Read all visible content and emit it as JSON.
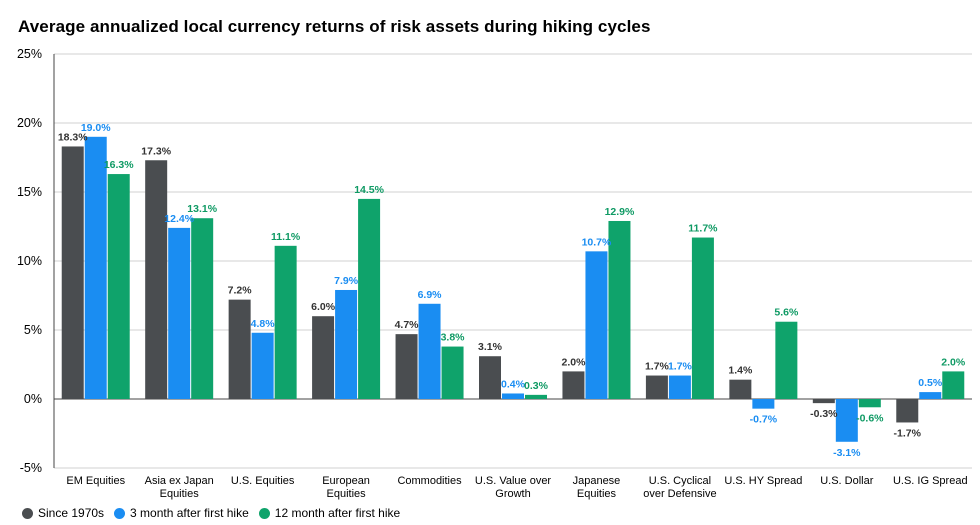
{
  "chart_data": {
    "type": "bar",
    "title": "Average annualized local currency returns of risk assets during hiking cycles",
    "categories": [
      [
        "EM Equities"
      ],
      [
        "Asia ex Japan",
        "Equities"
      ],
      [
        "U.S. Equities"
      ],
      [
        "European",
        "Equities"
      ],
      [
        "Commodities"
      ],
      [
        "U.S. Value over",
        "Growth"
      ],
      [
        "Japanese",
        "Equities"
      ],
      [
        "U.S. Cyclical",
        "over Defensive"
      ],
      [
        "U.S. HY Spread"
      ],
      [
        "U.S. Dollar"
      ],
      [
        "U.S. IG Spread"
      ]
    ],
    "series": [
      {
        "name": "Since 1970s",
        "color": "#4a4d50",
        "label_color": "#333333",
        "values": [
          18.3,
          17.3,
          7.2,
          6.0,
          4.7,
          3.1,
          2.0,
          1.7,
          1.4,
          -0.3,
          -1.7
        ]
      },
      {
        "name": "3 month after first hike",
        "color": "#1a8df2",
        "label_color": "#1a8df2",
        "values": [
          19.0,
          12.4,
          4.8,
          7.9,
          6.9,
          0.4,
          10.7,
          1.7,
          -0.7,
          -3.1,
          0.5
        ]
      },
      {
        "name": "12 month after first hike",
        "color": "#0fa36b",
        "label_color": "#0f9a64",
        "values": [
          16.3,
          13.1,
          11.1,
          14.5,
          3.8,
          0.3,
          12.9,
          11.7,
          5.6,
          -0.6,
          2.0
        ]
      }
    ],
    "ylim": [
      -5,
      25
    ],
    "yticks": [
      -5,
      0,
      5,
      10,
      15,
      20,
      25
    ],
    "ytick_labels": [
      "-5%",
      "0%",
      "5%",
      "10%",
      "15%",
      "20%",
      "25%"
    ],
    "value_labels": [
      [
        "18.3%",
        "17.3%",
        "7.2%",
        "6.0%",
        "4.7%",
        "3.1%",
        "2.0%",
        "1.7%",
        "1.4%",
        "-0.3%",
        "-1.7%"
      ],
      [
        "19.0%",
        "12.4%",
        "4.8%",
        "7.9%",
        "6.9%",
        "0.4%",
        "10.7%",
        "1.7%",
        "-0.7%",
        "-3.1%",
        "0.5%"
      ],
      [
        "16.3%",
        "13.1%",
        "11.1%",
        "14.5%",
        "3.8%",
        "0.3%",
        "12.9%",
        "11.7%",
        "5.6%",
        "-0.6%",
        "2.0%"
      ]
    ],
    "grid": true,
    "legend_position": "bottom-left",
    "xlabel": "",
    "ylabel": ""
  }
}
